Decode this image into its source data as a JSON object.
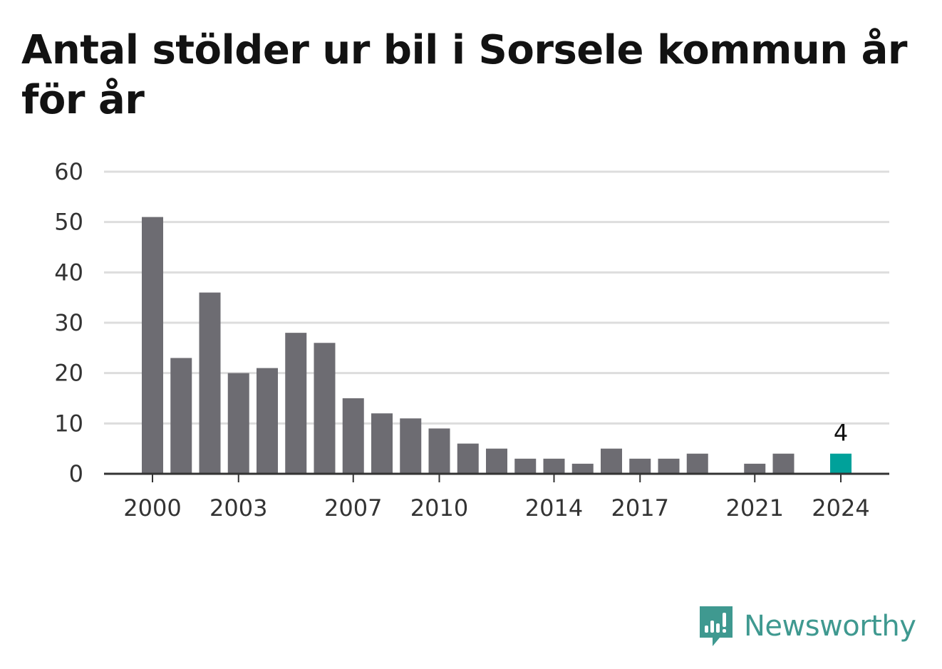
{
  "title": "Antal stölder ur bil i Sorsele kommun år för år",
  "brand": {
    "name": "Newsworthy",
    "icon": "newsworthy-logo-icon",
    "color": "#3f9990"
  },
  "colors": {
    "bar": "#6d6c72",
    "highlight": "#00a19a",
    "grid": "#dddddd",
    "axis": "#333333"
  },
  "chart_data": {
    "type": "bar",
    "title": "Antal stölder ur bil i Sorsele kommun år för år",
    "xlabel": "",
    "ylabel": "",
    "categories": [
      2000,
      2001,
      2002,
      2003,
      2004,
      2005,
      2006,
      2007,
      2008,
      2009,
      2010,
      2011,
      2012,
      2013,
      2014,
      2015,
      2016,
      2017,
      2018,
      2019,
      2020,
      2021,
      2022,
      2023,
      2024
    ],
    "values": [
      51,
      23,
      36,
      20,
      21,
      28,
      26,
      15,
      12,
      11,
      9,
      6,
      5,
      3,
      3,
      2,
      5,
      3,
      3,
      4,
      0,
      2,
      4,
      0,
      4
    ],
    "ylim": [
      0,
      60
    ],
    "yticks": [
      0,
      10,
      20,
      30,
      40,
      50,
      60
    ],
    "xticks": [
      2000,
      2003,
      2007,
      2010,
      2014,
      2017,
      2021,
      2024
    ],
    "highlight": {
      "category": 2024,
      "label": "4"
    },
    "grid": true,
    "legend": "none"
  }
}
